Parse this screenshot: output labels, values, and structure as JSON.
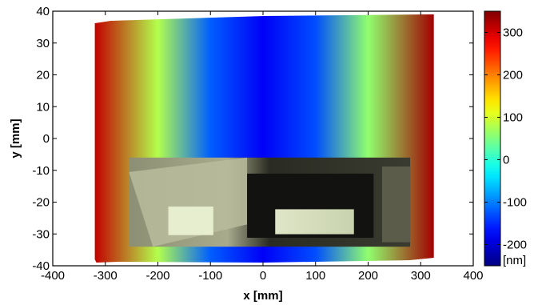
{
  "chart_data": {
    "type": "heatmap",
    "title": "",
    "xlabel": "x [mm]",
    "ylabel": "y [mm]",
    "xlim": [
      -400,
      400
    ],
    "ylim": [
      -40,
      40
    ],
    "x_ticks": [
      -400,
      -300,
      -200,
      -100,
      0,
      100,
      200,
      300,
      400
    ],
    "y_ticks": [
      -40,
      -30,
      -20,
      -10,
      0,
      10,
      20,
      30,
      40
    ],
    "x_tick_labels": [
      "-400",
      "-300",
      "-200",
      "-100",
      "0",
      "100",
      "200",
      "300",
      "400"
    ],
    "y_tick_labels": [
      "-40",
      "-30",
      "-20",
      "-10",
      "0",
      "10",
      "20",
      "30",
      "40"
    ],
    "colorbar": {
      "min": -250,
      "max": 350,
      "ticks": [
        300,
        200,
        100,
        0,
        -100,
        -200
      ],
      "tick_labels": [
        "300",
        "200",
        "100",
        "0",
        "-100",
        "-200"
      ],
      "unit_label": "[nm]",
      "colormap": "jet"
    },
    "surface": {
      "x_range": [
        -320,
        325
      ],
      "y_range": [
        -39,
        39
      ],
      "profile_x": [
        -320,
        -200,
        -100,
        0,
        100,
        200,
        325
      ],
      "profile_values": [
        310,
        80,
        -120,
        -180,
        -130,
        60,
        330
      ]
    },
    "inset_photo": {
      "description_visible": false,
      "x_range": [
        -255,
        280
      ],
      "y_range": [
        -34,
        -6
      ]
    }
  }
}
